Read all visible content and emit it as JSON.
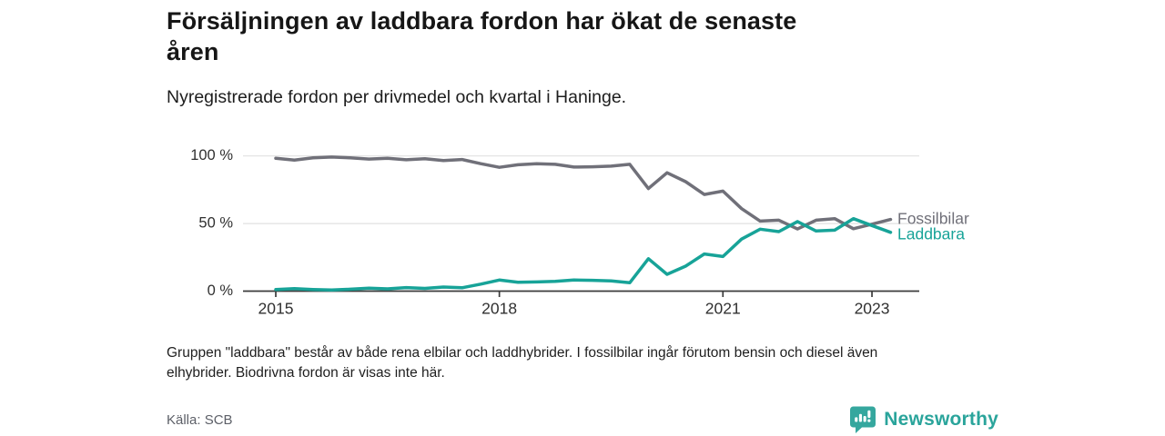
{
  "header": {
    "title": "Försäljningen av laddbara fordon har ökat de senaste\nåren",
    "subtitle": "Nyregistrerade fordon per drivmedel och kvartal i Haninge."
  },
  "chart_data": {
    "type": "line",
    "x_unit": "quarter",
    "x_start": "2015 Q1",
    "x_end": "2023 Q2",
    "ylim": [
      0,
      100
    ],
    "grid": "horizontal",
    "legend_position": "end-of-line",
    "y_ticks": [
      {
        "label": "0 %",
        "value": 0
      },
      {
        "label": "50 %",
        "value": 50
      },
      {
        "label": "100 %",
        "value": 100
      }
    ],
    "x_ticks": [
      {
        "label": "2015",
        "index": 0
      },
      {
        "label": "2018",
        "index": 12
      },
      {
        "label": "2021",
        "index": 24
      },
      {
        "label": "2023",
        "index": 32
      }
    ],
    "series": [
      {
        "name": "Fossilbilar",
        "color": "#707079",
        "values": [
          98.3,
          97.0,
          98.6,
          99.2,
          98.6,
          97.7,
          98.3,
          97.2,
          98.0,
          96.6,
          97.4,
          94.3,
          91.6,
          93.5,
          94.2,
          93.8,
          91.8,
          92.0,
          92.5,
          93.8,
          75.9,
          87.6,
          81.0,
          71.5,
          74.0,
          61.0,
          51.8,
          52.5,
          46.0,
          52.5,
          53.6,
          46.2,
          49.5,
          53.0
        ]
      },
      {
        "name": "Laddbara",
        "color": "#17a398",
        "values": [
          1.2,
          1.8,
          1.2,
          0.8,
          1.4,
          2.2,
          1.7,
          2.6,
          2.0,
          3.0,
          2.5,
          5.2,
          8.2,
          6.6,
          6.8,
          7.2,
          8.2,
          8.0,
          7.5,
          6.2,
          24.0,
          12.4,
          18.5,
          27.5,
          25.6,
          38.5,
          45.8,
          44.0,
          51.5,
          44.5,
          45.1,
          53.6,
          48.5,
          43.5
        ]
      }
    ]
  },
  "footer": {
    "note": "Gruppen \"laddbara\" består av både rena elbilar och laddhybrider. I fossilbilar ingår förutom bensin och diesel även\nelhybrider. Biodrivna fordon är visas inte här.",
    "source": "Källa: SCB",
    "brand": "Newsworthy"
  },
  "colors": {
    "accent_teal": "#17a398",
    "line_gray": "#707079",
    "axis": "#3b3b3b",
    "gridline": "#e1e1e1",
    "logo_teal": "#35a79e"
  }
}
